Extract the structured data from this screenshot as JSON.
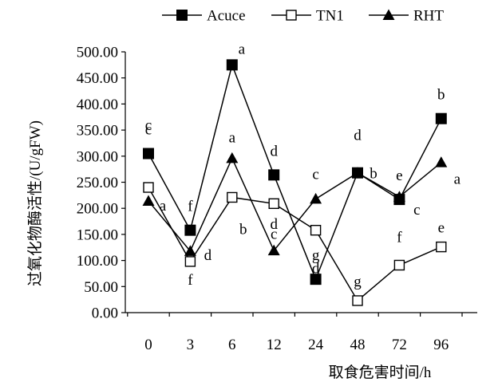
{
  "chart_data": {
    "type": "line",
    "categories": [
      "0",
      "3",
      "6",
      "12",
      "24",
      "48",
      "72",
      "96"
    ],
    "xlabel": "取食危害时间/h",
    "ylabel": "过氧化物酶活性/(U/gFW)",
    "ylim": [
      0,
      500
    ],
    "yticks": [
      "0.00",
      "50.00",
      "100.00",
      "150.00",
      "200.00",
      "250.00",
      "300.00",
      "350.00",
      "400.00",
      "450.00",
      "500.00"
    ],
    "grid": false,
    "legend_position": "top",
    "series": [
      {
        "name": "Acuce",
        "marker": "square-filled",
        "color": "#000000",
        "values": [
          305,
          158,
          475,
          264,
          64,
          268,
          217,
          372
        ],
        "labels": [
          "c",
          "f",
          "a",
          "d",
          "g",
          "d",
          "e",
          "b"
        ]
      },
      {
        "name": "TN1",
        "marker": "square-open",
        "color": "#000000",
        "values": [
          240,
          98,
          221,
          209,
          158,
          23,
          91,
          126
        ],
        "labels": [
          "c",
          "f",
          "b",
          "c",
          "d",
          "g",
          "f",
          "e"
        ]
      },
      {
        "name": "RHT",
        "marker": "triangle-filled",
        "color": "#000000",
        "values": [
          214,
          118,
          296,
          119,
          218,
          268,
          222,
          288
        ],
        "labels": [
          "a",
          "d",
          "a",
          "d",
          "c",
          "b",
          "c",
          "a"
        ]
      }
    ]
  }
}
